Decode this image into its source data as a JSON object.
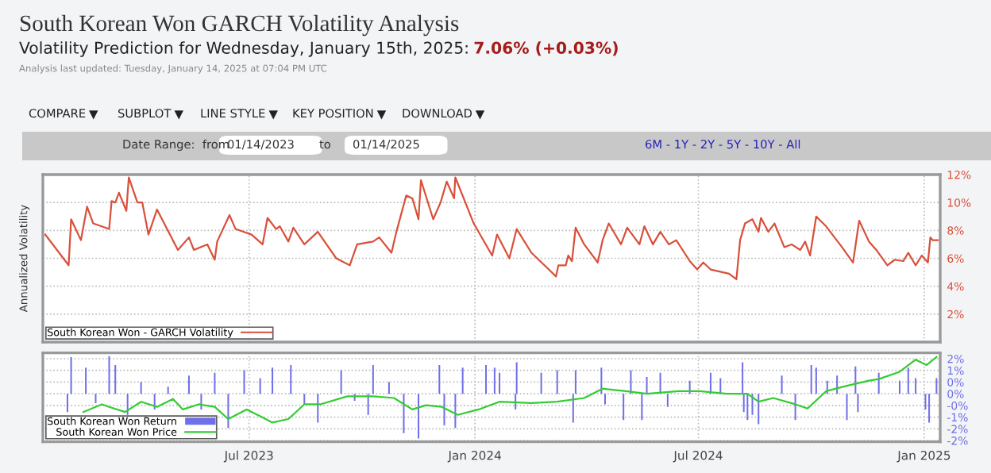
{
  "chart_data": [
    {
      "type": "line",
      "title": "South Korean Won GARCH Volatility Analysis",
      "subtitle": "Volatility Prediction for Wednesday, January 15th, 2025:",
      "annotations": [
        "7.06% (+0.03%)",
        "Analysis last updated: Tuesday, January 14, 2025 at 07:04 PM UTC",
        "COMPARE",
        "SUBPLOT",
        "LINE STYLE",
        "KEY POSITION",
        "DOWNLOAD",
        "Date Range:  from",
        "01/14/2023",
        "to",
        "01/14/2025",
        "6M - 1Y - 2Y - 5Y - 10Y - All"
      ],
      "ylabel": "Annualized Volatility",
      "series": [
        {
          "name": "South Korean Won - GARCH Volatility",
          "color": "#d9503a",
          "x": [
            "2023-01-16",
            "2023-02-04",
            "2023-02-06",
            "2023-02-14",
            "2023-02-19",
            "2023-02-24",
            "2023-03-09",
            "2023-03-11",
            "2023-03-14",
            "2023-03-17",
            "2023-03-23",
            "2023-03-25",
            "2023-04-01",
            "2023-04-05",
            "2023-04-10",
            "2023-04-17",
            "2023-05-04",
            "2023-05-13",
            "2023-05-17",
            "2023-05-28",
            "2023-06-03",
            "2023-06-05",
            "2023-06-15",
            "2023-06-20",
            "2023-07-03",
            "2023-07-12",
            "2023-07-16",
            "2023-07-23",
            "2023-07-26",
            "2023-08-02",
            "2023-08-06",
            "2023-08-15",
            "2023-08-26",
            "2023-09-10",
            "2023-09-21",
            "2023-09-27",
            "2023-10-10",
            "2023-10-15",
            "2023-10-25",
            "2023-10-29",
            "2023-11-06",
            "2023-11-11",
            "2023-11-16",
            "2023-11-18",
            "2023-11-28",
            "2023-12-04",
            "2023-12-09",
            "2023-12-15",
            "2023-12-16",
            "2023-12-31",
            "2024-01-15",
            "2024-01-19",
            "2024-01-29",
            "2024-02-04",
            "2024-02-16",
            "2024-02-29",
            "2024-03-07",
            "2024-03-09",
            "2024-03-15",
            "2024-03-17",
            "2024-03-20",
            "2024-03-23",
            "2024-03-30",
            "2024-04-10",
            "2024-04-14",
            "2024-04-19",
            "2024-04-29",
            "2024-05-04",
            "2024-05-14",
            "2024-05-18",
            "2024-05-25",
            "2024-05-31",
            "2024-06-07",
            "2024-06-13",
            "2024-06-24",
            "2024-06-30",
            "2024-07-05",
            "2024-07-11",
            "2024-07-26",
            "2024-08-01",
            "2024-08-04",
            "2024-08-08",
            "2024-08-14",
            "2024-08-19",
            "2024-08-21",
            "2024-08-27",
            "2024-09-01",
            "2024-09-09",
            "2024-09-15",
            "2024-09-22",
            "2024-09-26",
            "2024-09-30",
            "2024-10-05",
            "2024-10-13",
            "2024-10-26",
            "2024-11-04",
            "2024-11-09",
            "2024-11-17",
            "2024-11-23",
            "2024-12-02",
            "2024-12-08",
            "2024-12-15",
            "2024-12-19",
            "2024-12-25",
            "2024-12-30",
            "2025-01-04",
            "2025-01-06",
            "2025-01-08",
            "2025-01-12"
          ],
          "values": [
            7.7,
            5.5,
            8.8,
            7.3,
            9.7,
            8.5,
            8.1,
            10.1,
            10.0,
            10.7,
            9.4,
            11.8,
            10.0,
            10.0,
            7.7,
            9.5,
            6.6,
            7.5,
            6.6,
            7.0,
            5.9,
            7.2,
            9.1,
            8.1,
            7.7,
            7.0,
            8.9,
            8.1,
            8.3,
            7.2,
            8.2,
            7.0,
            7.9,
            6.0,
            5.5,
            7.0,
            7.2,
            7.5,
            6.4,
            7.9,
            10.5,
            10.3,
            8.8,
            11.6,
            8.8,
            10.0,
            11.5,
            10.3,
            11.8,
            8.5,
            6.2,
            7.7,
            6.0,
            8.1,
            6.4,
            5.3,
            4.7,
            5.5,
            5.5,
            6.2,
            5.8,
            8.2,
            7.0,
            5.7,
            7.3,
            8.5,
            7.0,
            8.2,
            7.0,
            8.3,
            7.0,
            7.9,
            7.0,
            7.3,
            5.8,
            5.2,
            5.7,
            5.2,
            4.9,
            4.5,
            7.3,
            8.5,
            8.8,
            7.9,
            8.9,
            7.9,
            8.5,
            6.8,
            7.0,
            6.6,
            7.2,
            6.2,
            9.0,
            8.3,
            6.8,
            5.7,
            8.7,
            7.2,
            6.6,
            5.5,
            5.9,
            5.8,
            6.4,
            5.5,
            6.2,
            5.7,
            7.5,
            7.3,
            7.3
          ]
        }
      ],
      "xlim": [
        "2023-01-14",
        "2025-01-14"
      ],
      "xticks": [
        {
          "value": "2023-07-01",
          "label": null
        },
        {
          "value": "2024-01-01",
          "label": null
        },
        {
          "value": "2024-07-01",
          "label": null
        },
        {
          "value": "2025-01-01",
          "label": null
        }
      ],
      "ylim": [
        0,
        12
      ],
      "yticks": [
        {
          "value": 2,
          "label": "2%"
        },
        {
          "value": 4,
          "label": "4%"
        },
        {
          "value": 6,
          "label": "6%"
        },
        {
          "value": 8,
          "label": "8%"
        },
        {
          "value": 10,
          "label": "10%"
        },
        {
          "value": 12,
          "label": "12%"
        }
      ],
      "tick_labels": "y",
      "grid": true,
      "legend": "bottom left"
    },
    {
      "type": "bar",
      "series": [
        {
          "name": "South Korean Won Return",
          "type": "bar",
          "color": "#6f6fe8",
          "x": [
            "2023-02-03",
            "2023-02-06",
            "2023-02-18",
            "2023-02-26",
            "2023-03-09",
            "2023-03-14",
            "2023-03-24",
            "2023-04-04",
            "2023-04-15",
            "2023-04-26",
            "2023-05-13",
            "2023-05-23",
            "2023-06-03",
            "2023-06-14",
            "2023-06-27",
            "2023-07-10",
            "2023-07-20",
            "2023-08-04",
            "2023-08-15",
            "2023-08-26",
            "2023-09-14",
            "2023-09-25",
            "2023-10-06",
            "2023-10-10",
            "2023-10-23",
            "2023-11-04",
            "2023-11-16",
            "2023-12-03",
            "2023-12-07",
            "2023-12-16",
            "2023-12-22",
            "2024-01-10",
            "2024-01-17",
            "2024-01-21",
            "2024-02-03",
            "2024-02-04",
            "2024-02-24",
            "2024-03-08",
            "2024-03-21",
            "2024-03-23",
            "2024-04-13",
            "2024-04-16",
            "2024-05-01",
            "2024-05-07",
            "2024-05-16",
            "2024-05-20",
            "2024-05-31",
            "2024-06-06",
            "2024-06-24",
            "2024-07-11",
            "2024-07-19",
            "2024-08-06",
            "2024-08-07",
            "2024-08-10",
            "2024-08-14",
            "2024-08-19",
            "2024-09-07",
            "2024-09-18",
            "2024-10-01",
            "2024-10-05",
            "2024-10-14",
            "2024-10-22",
            "2024-10-30",
            "2024-11-06",
            "2024-11-08",
            "2024-11-25",
            "2024-12-12",
            "2024-12-19",
            "2024-12-25",
            "2025-01-02",
            "2025-01-05",
            "2025-01-11"
          ],
          "values": [
            -0.78,
            1.57,
            1.12,
            -0.4,
            1.61,
            1.23,
            -0.9,
            0.5,
            -0.67,
            0.3,
            0.78,
            -0.67,
            0.9,
            -1.46,
            1.01,
            0.67,
            1.12,
            1.23,
            -0.45,
            -1.23,
            1.01,
            -0.3,
            -0.9,
            1.23,
            0.5,
            -1.68,
            -1.91,
            1.23,
            -1.35,
            -1.46,
            1.12,
            1.23,
            1.12,
            0.9,
            -0.67,
            1.35,
            0.9,
            1.01,
            -1.23,
            1.01,
            1.12,
            -0.45,
            -1.12,
            1.01,
            -1.12,
            0.72,
            0.9,
            -0.56,
            0.56,
            0.9,
            0.67,
            1.35,
            -0.78,
            -1.12,
            -0.9,
            -1.3,
            0.78,
            -1.12,
            1.23,
            1.12,
            0.56,
            0.78,
            -1.12,
            1.17,
            -0.78,
            0.9,
            0.56,
            1.12,
            0.67,
            -0.67,
            -1.23,
            0.67
          ]
        },
        {
          "name": "South Korean Won Price",
          "type": "line",
          "color": "#33cc33",
          "x": [
            "2023-02-16",
            "2023-03-03",
            "2023-03-09",
            "2023-03-22",
            "2023-04-04",
            "2023-04-17",
            "2023-04-30",
            "2023-05-08",
            "2023-05-21",
            "2023-06-03",
            "2023-06-14",
            "2023-06-29",
            "2023-07-12",
            "2023-07-20",
            "2023-08-02",
            "2023-08-15",
            "2023-08-28",
            "2023-09-19",
            "2023-10-10",
            "2023-10-27",
            "2023-11-11",
            "2023-11-22",
            "2023-12-05",
            "2023-12-18",
            "2024-01-04",
            "2024-01-21",
            "2024-02-16",
            "2024-03-08",
            "2024-03-30",
            "2024-04-14",
            "2024-05-03",
            "2024-05-20",
            "2024-06-15",
            "2024-07-02",
            "2024-07-24",
            "2024-08-10",
            "2024-08-19",
            "2024-08-31",
            "2024-09-18",
            "2024-09-28",
            "2024-10-13",
            "2024-10-30",
            "2024-11-17",
            "2024-11-25",
            "2024-12-12",
            "2024-12-25",
            "2025-01-03",
            "2025-01-11"
          ],
          "values": [
            -0.78,
            -0.45,
            -0.56,
            -0.78,
            -0.34,
            -0.56,
            -0.22,
            -0.67,
            -0.45,
            -0.56,
            -1.08,
            -0.67,
            -1.01,
            -1.23,
            -1.08,
            -0.45,
            -0.45,
            -0.11,
            -0.11,
            -0.18,
            -0.67,
            -0.49,
            -0.56,
            -0.9,
            -0.67,
            -0.34,
            -0.4,
            -0.34,
            -0.18,
            0.22,
            0.11,
            0,
            0.11,
            0.11,
            0,
            0,
            -0.34,
            -0.18,
            -0.45,
            -0.63,
            0.11,
            0.34,
            0.56,
            0.63,
            0.94,
            1.46,
            1.23,
            1.57
          ]
        }
      ],
      "xlim": [
        "2023-01-14",
        "2025-01-14"
      ],
      "xticks": [
        {
          "value": "2023-07-01",
          "label": "Jul 2023"
        },
        {
          "value": "2024-01-01",
          "label": "Jan 2024"
        },
        {
          "value": "2024-07-01",
          "label": "Jul 2024"
        },
        {
          "value": "2025-01-01",
          "label": "Jan 2025"
        }
      ],
      "ylim": [
        -2.05,
        1.75
      ],
      "yticks": [
        {
          "value": 1.5,
          "label": "2%"
        },
        {
          "value": 1,
          "label": "1%"
        },
        {
          "value": 0.5,
          "label": "0%"
        },
        {
          "value": 0,
          "label": "0%"
        },
        {
          "value": -0.5,
          "label": "-0%"
        },
        {
          "value": -1,
          "label": "-1%"
        },
        {
          "value": -1.5,
          "label": "-2%"
        },
        {
          "value": -2,
          "label": "-2%"
        }
      ],
      "grid": true,
      "legend": "bottom left"
    }
  ]
}
